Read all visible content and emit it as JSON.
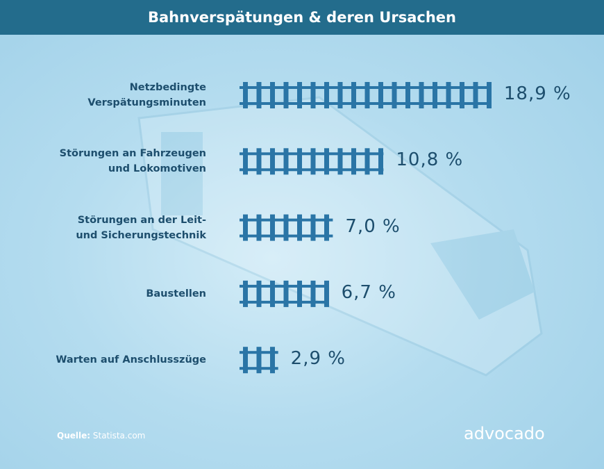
{
  "chart_data": {
    "type": "bar",
    "orientation": "horizontal",
    "title": "Bahnverspätungen & deren Ursachen",
    "categories": [
      "Netzbedingte\nVerspätungsminuten",
      "Störungen an Fahrzeugen\nund Lokomotiven",
      "Störungen an der Leit-\nund Sicherungstechnik",
      "Baustellen",
      "Warten auf Anschlusszüge"
    ],
    "values": [
      18.9,
      10.8,
      7.0,
      6.7,
      2.9
    ],
    "value_labels": [
      "18,9 %",
      "10,8 %",
      "7,0 %",
      "6,7 %",
      "2,9 %"
    ],
    "color": "#2a75a6"
  },
  "footer": {
    "source_label": "Quelle:",
    "source": "Statista.com",
    "logo": "advocado"
  }
}
